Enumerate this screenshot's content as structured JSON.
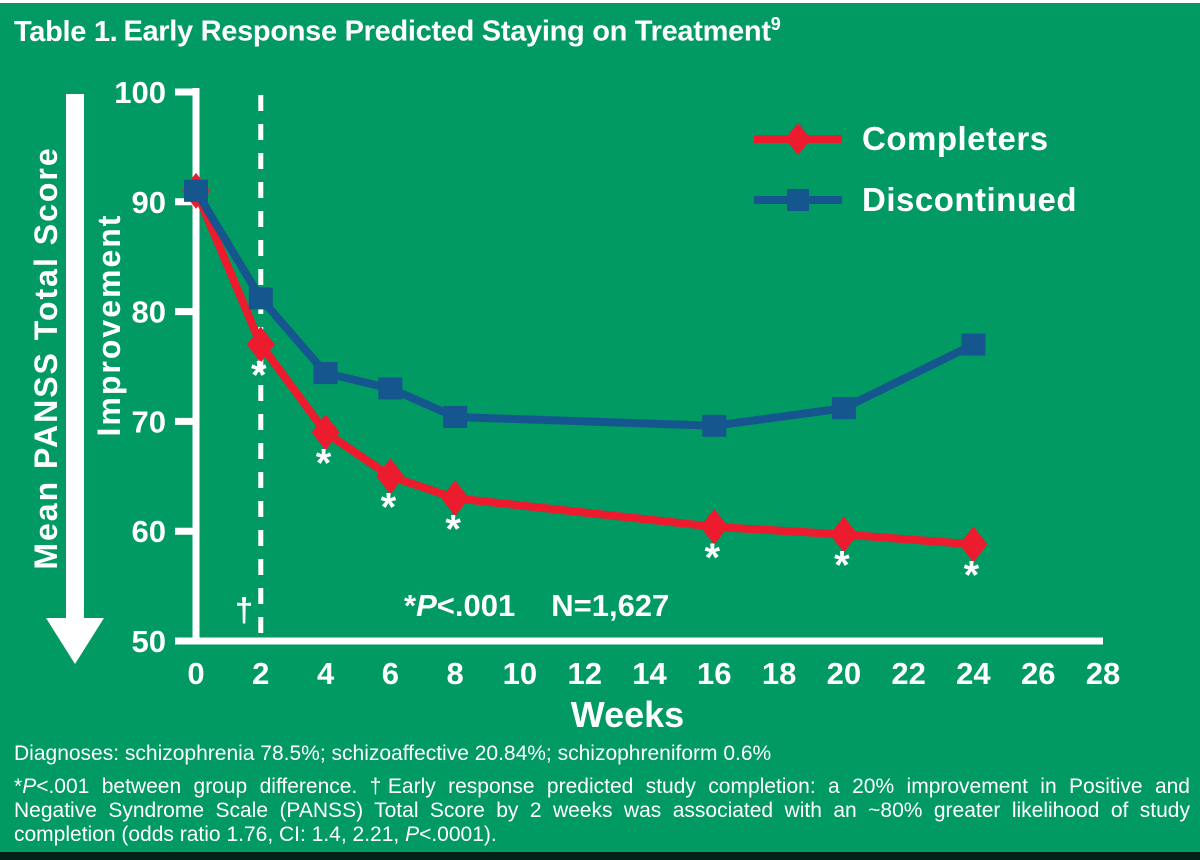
{
  "title": {
    "prefix": "Table 1.",
    "rest": "Early Response Predicted Staying on Treatment",
    "superscript": "9"
  },
  "colors": {
    "background": "#009A62",
    "completers_red": "#EC1B2D",
    "discontinued_blue": "#16568E",
    "text_white": "#FFFFFF",
    "bottom_edge": "#052018"
  },
  "y_axis_label": {
    "line1": "Mean PANSS Total Score",
    "line2": "Improvement",
    "arrow_direction": "down"
  },
  "chart_data": {
    "type": "line",
    "x": [
      0,
      2,
      4,
      6,
      8,
      16,
      20,
      24
    ],
    "series": [
      {
        "name": "Completers",
        "marker": "diamond",
        "color_key": "completers_red",
        "values": [
          91,
          77,
          69,
          65,
          63,
          60.4,
          59.7,
          58.8
        ]
      },
      {
        "name": "Discontinued",
        "marker": "square",
        "color_key": "discontinued_blue",
        "values": [
          91,
          81.2,
          74.4,
          73,
          70.4,
          69.6,
          71.2,
          77
        ]
      }
    ],
    "xlabel": "Weeks",
    "ylabel": "Mean PANSS Total Score",
    "ylabel_secondary": "Improvement",
    "x_ticks": [
      0,
      2,
      4,
      6,
      8,
      10,
      12,
      14,
      16,
      18,
      20,
      22,
      24,
      26,
      28
    ],
    "y_ticks": [
      100,
      90,
      80,
      70,
      60,
      50
    ],
    "xlim": [
      0,
      28
    ],
    "ylim": [
      50,
      100
    ],
    "grid": false,
    "legend_position": "top-right",
    "reference_line": {
      "x": 2,
      "style": "dashed",
      "marker": "†"
    },
    "significance": {
      "symbol": "*",
      "series": "Completers",
      "weeks": [
        2,
        4,
        6,
        8,
        16,
        20,
        24
      ]
    }
  },
  "legend": {
    "items": [
      {
        "label": "Completers"
      },
      {
        "label": "Discontinued"
      }
    ]
  },
  "annotation": {
    "star": "*",
    "p": "P",
    "p_rest": "<.001",
    "n": "N=1,627"
  },
  "dagger": "†",
  "footnotes": {
    "line1": "Diagnoses: schizophrenia 78.5%; schizoaffective 20.84%; schizophreniform 0.6%",
    "para": [
      {
        "justify": true,
        "segments": [
          {
            "t": "*"
          },
          {
            "t": "P",
            "i": true
          },
          {
            "t": "<.001 between group difference. †Early response predicted study completion: a 20% improvement in Positive and"
          }
        ]
      },
      {
        "justify": true,
        "segments": [
          {
            "t": "Negative Syndrome Scale (PANSS) Total Score by 2 weeks was associated with an ~80% greater likelihood of study"
          }
        ]
      },
      {
        "justify": false,
        "segments": [
          {
            "t": "completion (odds ratio 1.76, CI: 1.4, 2.21, "
          },
          {
            "t": "P",
            "i": true
          },
          {
            "t": "<.0001)."
          }
        ]
      }
    ]
  }
}
